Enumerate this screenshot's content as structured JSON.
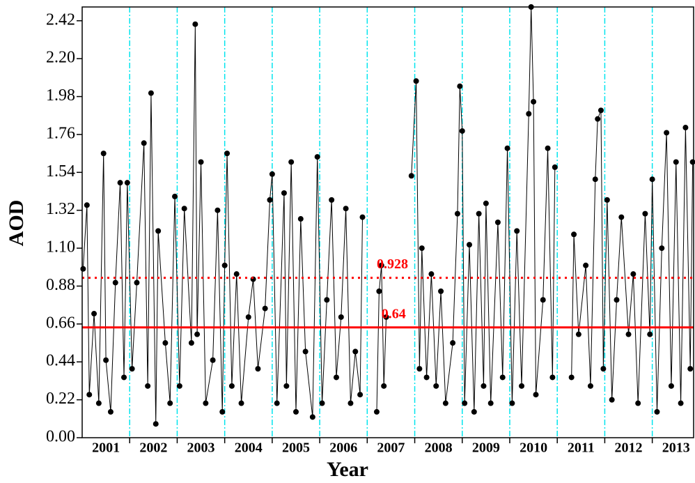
{
  "chart_data": {
    "type": "line",
    "x_label": "Year",
    "y_label": "AOD",
    "xlim": [
      2001,
      2013.87
    ],
    "xticks": [
      2002,
      2003,
      2004,
      2005,
      2006,
      2007,
      2008,
      2009,
      2010,
      2011,
      2012,
      2013
    ],
    "year_labels": [
      "2001",
      "2002",
      "2003",
      "2004",
      "2005",
      "2006",
      "2007",
      "2008",
      "2009",
      "2010",
      "2011",
      "2012",
      "2013"
    ],
    "ylim": [
      0,
      2.5
    ],
    "yticks": [
      {
        "value": 0,
        "label": "0.00"
      },
      0.22,
      0.44,
      0.66,
      0.88,
      {
        "value": 1.1,
        "label": "1.10"
      },
      1.32,
      1.54,
      1.76,
      1.98,
      {
        "value": 2.2,
        "label": "2.20"
      },
      2.42
    ],
    "grid_color": "#00e5ee",
    "color": "#000000",
    "reference_lines": [
      {
        "value": 0.928,
        "style": "dotted",
        "color": "#ff0000",
        "label_x": 2007.2
      },
      {
        "value": 0.64,
        "style": "solid",
        "color": "#ff0000",
        "label_x": 2007.3
      }
    ],
    "x": [
      2001.02,
      2001.1,
      2001.15,
      2001.25,
      2001.35,
      2001.45,
      2001.5,
      2001.6,
      2001.7,
      2001.8,
      2001.88,
      2001.95,
      2002.05,
      2002.15,
      2002.3,
      2002.38,
      2002.45,
      2002.55,
      2002.6,
      2002.75,
      2002.85,
      2002.95,
      2003.05,
      2003.15,
      2003.3,
      2003.38,
      2003.42,
      2003.5,
      2003.6,
      2003.75,
      2003.85,
      2003.95,
      2004.0,
      2004.05,
      2004.15,
      2004.25,
      2004.35,
      2004.5,
      2004.6,
      2004.7,
      2004.85,
      2004.95,
      2005.0,
      2005.1,
      2005.25,
      2005.3,
      2005.4,
      2005.5,
      2005.6,
      2005.7,
      2005.85,
      2005.95,
      2006.05,
      2006.15,
      2006.25,
      2006.35,
      2006.45,
      2006.55,
      2006.65,
      2006.75,
      2006.85,
      2006.9,
      null,
      2007.2,
      2007.25,
      2007.3,
      2007.35,
      2007.4,
      null,
      2007.93,
      2008.03,
      2008.1,
      2008.15,
      2008.25,
      2008.35,
      2008.45,
      2008.55,
      2008.65,
      2008.8,
      2008.9,
      2008.95,
      2009.0,
      2009.05,
      2009.15,
      2009.25,
      2009.35,
      2009.45,
      2009.5,
      2009.6,
      2009.75,
      2009.85,
      2009.95,
      2010.05,
      2010.15,
      2010.25,
      2010.4,
      2010.45,
      2010.5,
      2010.55,
      2010.7,
      2010.8,
      2010.9,
      2010.95,
      null,
      2011.3,
      2011.35,
      2011.45,
      2011.6,
      2011.7,
      2011.8,
      2011.85,
      2011.92,
      2011.97,
      2012.05,
      2012.15,
      2012.25,
      2012.35,
      2012.5,
      2012.6,
      2012.7,
      2012.85,
      2012.95,
      2013.0,
      2013.1,
      2013.2,
      2013.3,
      2013.4,
      2013.5,
      2013.6,
      2013.7,
      2013.8,
      2013.85
    ],
    "values": [
      0.98,
      1.35,
      0.25,
      0.72,
      0.2,
      1.65,
      0.45,
      0.15,
      0.9,
      1.48,
      0.35,
      1.48,
      0.4,
      0.9,
      1.71,
      0.3,
      2.0,
      0.08,
      1.2,
      0.55,
      0.2,
      1.4,
      0.3,
      1.33,
      0.55,
      2.4,
      0.6,
      1.6,
      0.2,
      0.45,
      1.32,
      0.15,
      1.0,
      1.65,
      0.3,
      0.95,
      0.2,
      0.7,
      0.92,
      0.4,
      0.75,
      1.38,
      1.53,
      0.2,
      1.42,
      0.3,
      1.6,
      0.15,
      1.27,
      0.5,
      0.12,
      1.63,
      0.2,
      0.8,
      1.38,
      0.35,
      0.7,
      1.33,
      0.2,
      0.5,
      0.25,
      1.28,
      null,
      0.15,
      0.85,
      1.0,
      0.3,
      0.7,
      null,
      1.52,
      2.07,
      0.4,
      1.1,
      0.35,
      0.95,
      0.3,
      0.85,
      0.2,
      0.55,
      1.3,
      2.04,
      1.78,
      0.2,
      1.12,
      0.15,
      1.3,
      0.3,
      1.36,
      0.2,
      1.25,
      0.35,
      1.68,
      0.2,
      1.2,
      0.3,
      1.88,
      2.5,
      1.95,
      0.25,
      0.8,
      1.68,
      0.35,
      1.57,
      null,
      0.35,
      1.18,
      0.6,
      1.0,
      0.3,
      1.5,
      1.85,
      1.9,
      0.4,
      1.38,
      0.22,
      0.8,
      1.28,
      0.6,
      0.95,
      0.2,
      1.3,
      0.6,
      1.5,
      0.15,
      1.1,
      1.77,
      0.3,
      1.6,
      0.2,
      1.8,
      0.4,
      1.6
    ]
  }
}
